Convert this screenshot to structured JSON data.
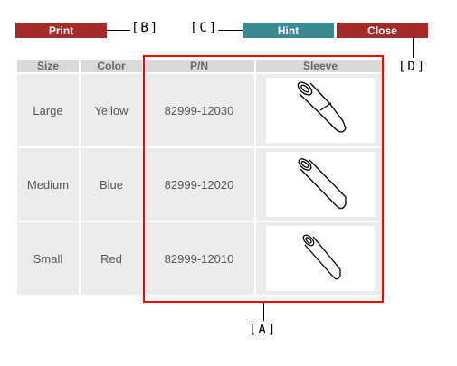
{
  "buttons": {
    "print": "Print",
    "hint": "Hint",
    "close": "Close"
  },
  "callouts": {
    "b": "[B]",
    "c": "[C]",
    "d": "[D]",
    "a": "[A]"
  },
  "table": {
    "headers": [
      "Size",
      "Color",
      "P/N",
      "Sleeve"
    ],
    "rows": [
      {
        "size": "Large",
        "color": "Yellow",
        "pn": "82999-12030"
      },
      {
        "size": "Medium",
        "color": "Blue",
        "pn": "82999-12020"
      },
      {
        "size": "Small",
        "color": "Red",
        "pn": "82999-12010"
      }
    ]
  },
  "colors": {
    "print": "#a52a2a",
    "hint": "#3a8a94",
    "close": "#a52a2a",
    "highlight": "#ff0000"
  },
  "icons": [
    "sleeve-large-icon",
    "sleeve-medium-icon",
    "sleeve-small-icon"
  ]
}
